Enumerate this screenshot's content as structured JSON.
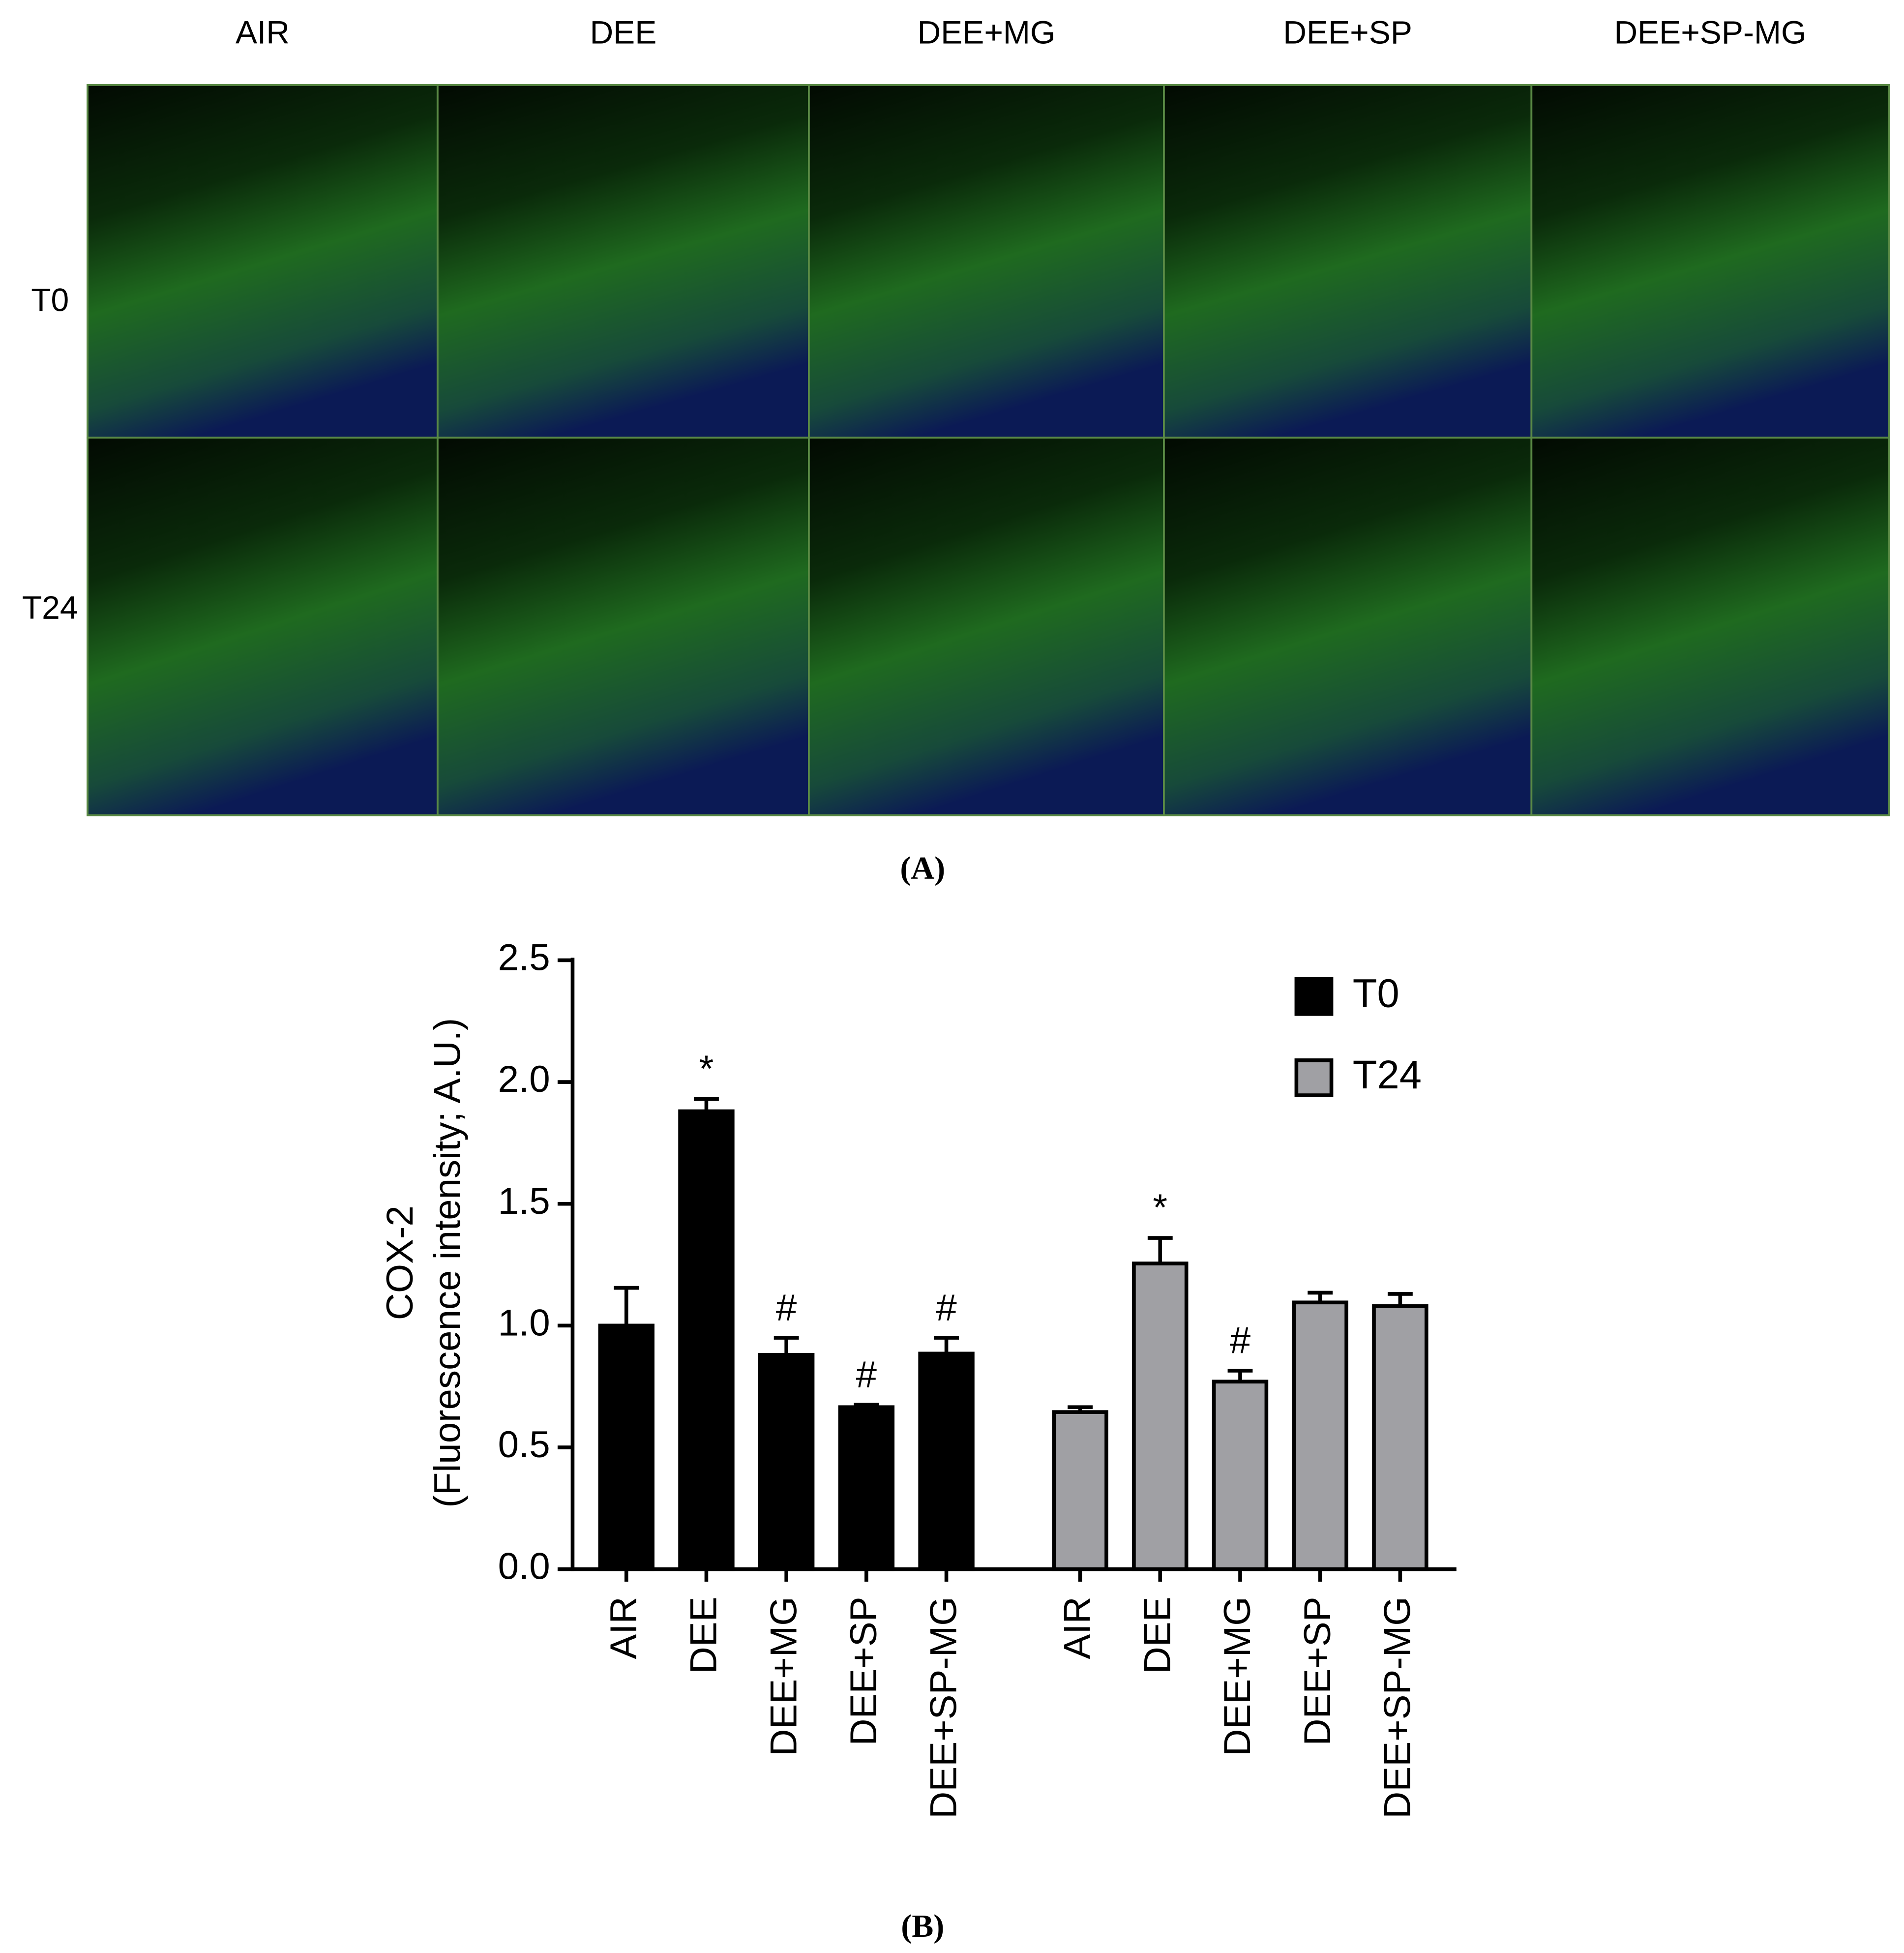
{
  "panel_a": {
    "columns": [
      "AIR",
      "DEE",
      "DEE+MG",
      "DEE+SP",
      "DEE+SP-MG"
    ],
    "rows": [
      "T0",
      "T24"
    ],
    "caption": "(A)"
  },
  "chart_data": {
    "type": "bar",
    "caption": "(B)",
    "ylabel": [
      "COX-2",
      "(Fluorescence intensity; A.U.)"
    ],
    "categories": [
      "AIR",
      "DEE",
      "DEE+MG",
      "DEE+SP",
      "DEE+SP-MG"
    ],
    "series": [
      {
        "name": "T0",
        "color": "#000000",
        "values": [
          1.0,
          1.88,
          0.88,
          0.665,
          0.885
        ],
        "errors": [
          0.155,
          0.05,
          0.07,
          0.01,
          0.065
        ],
        "annotations": [
          null,
          "*",
          "#",
          "#",
          "#"
        ]
      },
      {
        "name": "T24",
        "color": "#a0a0a4",
        "values": [
          0.645,
          1.255,
          0.77,
          1.095,
          1.08
        ],
        "errors": [
          0.02,
          0.105,
          0.045,
          0.04,
          0.05
        ],
        "annotations": [
          null,
          "*",
          "#",
          null,
          null
        ]
      }
    ],
    "ylim": [
      0,
      2.5
    ],
    "yticks": [
      {
        "value": 0,
        "label": "0.0"
      },
      0.5,
      {
        "value": 1,
        "label": "1.0"
      },
      1.5,
      {
        "value": 2,
        "label": "2.0"
      },
      2.5
    ],
    "legend": "upper right"
  }
}
